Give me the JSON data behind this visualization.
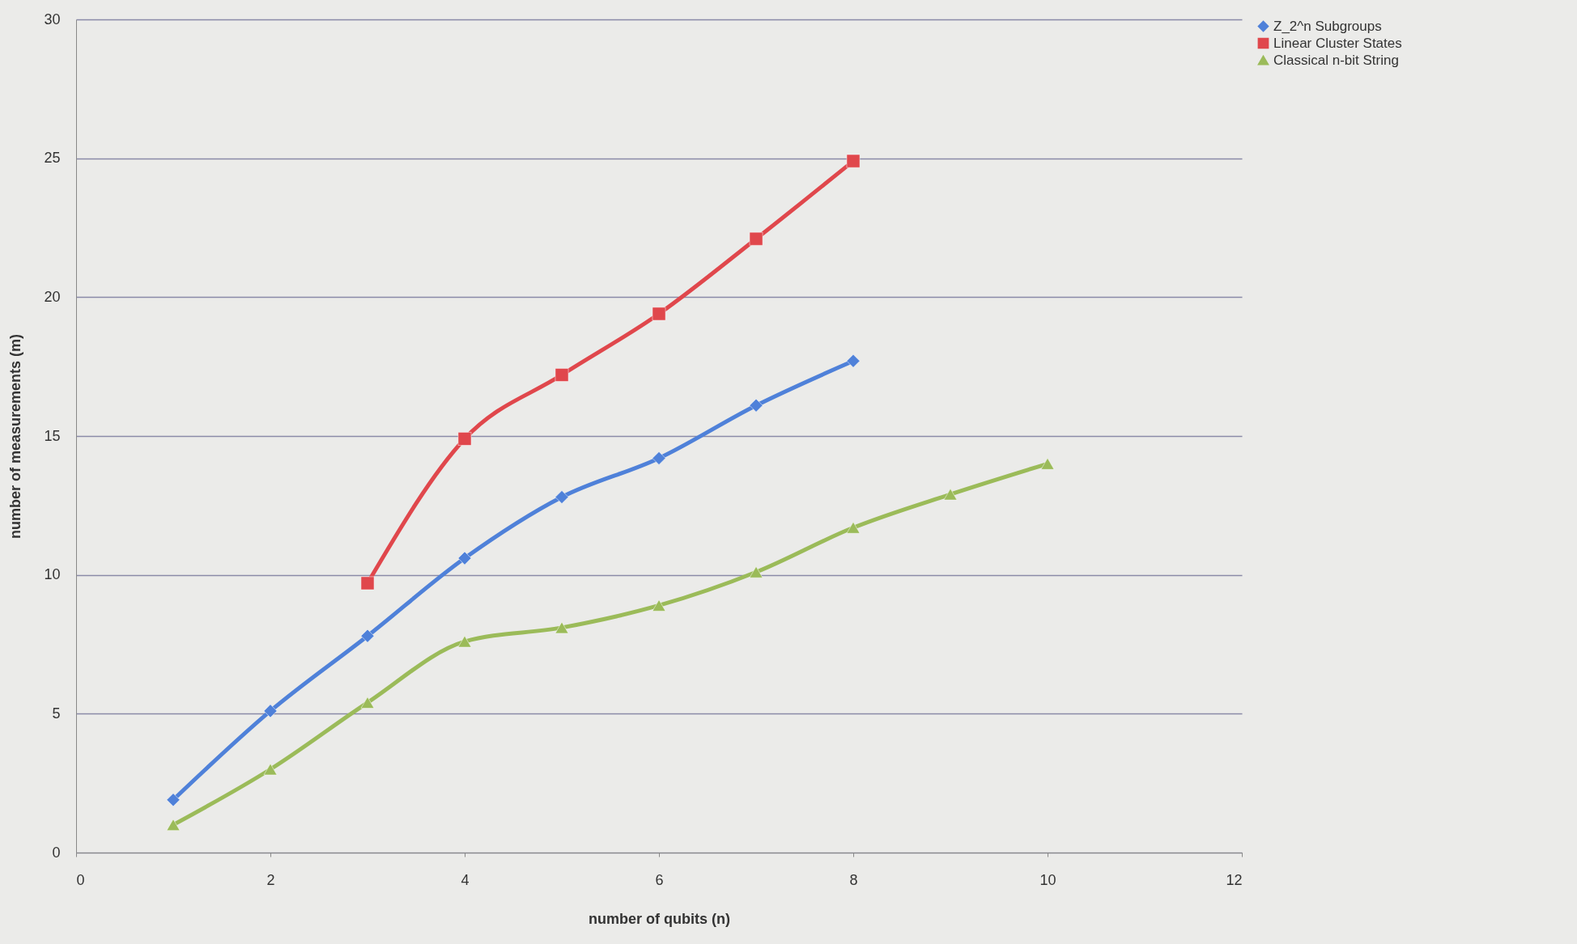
{
  "chart_data": {
    "type": "line",
    "xlabel": "number of qubits (n)",
    "ylabel": "number of measurements (m)",
    "xlim": [
      0,
      12
    ],
    "xticks": [
      0,
      2,
      4,
      6,
      8,
      10,
      12
    ],
    "ylim": [
      0,
      30
    ],
    "yticks": [
      0,
      5,
      10,
      15,
      20,
      25,
      30
    ],
    "grid": "y",
    "legend": "right",
    "series": [
      {
        "name": "Z_2^n Subgroups",
        "color": "#4f81d9",
        "marker": "diamond",
        "x": [
          1,
          2,
          3,
          4,
          5,
          6,
          7,
          8
        ],
        "values": [
          1.9,
          5.1,
          7.8,
          10.6,
          12.8,
          14.2,
          16.1,
          17.7
        ]
      },
      {
        "name": "Linear Cluster States",
        "color": "#e0474c",
        "marker": "square",
        "x": [
          3,
          4,
          5,
          6,
          7,
          8
        ],
        "values": [
          9.7,
          14.9,
          17.2,
          19.4,
          22.1,
          24.9
        ]
      },
      {
        "name": "Classical n-bit String",
        "color": "#9bbb59",
        "marker": "triangle",
        "x": [
          1,
          2,
          3,
          4,
          5,
          6,
          7,
          8,
          9,
          10
        ],
        "values": [
          1.0,
          3.0,
          5.4,
          7.6,
          8.1,
          8.9,
          10.1,
          11.7,
          12.9,
          14.0
        ]
      }
    ]
  }
}
